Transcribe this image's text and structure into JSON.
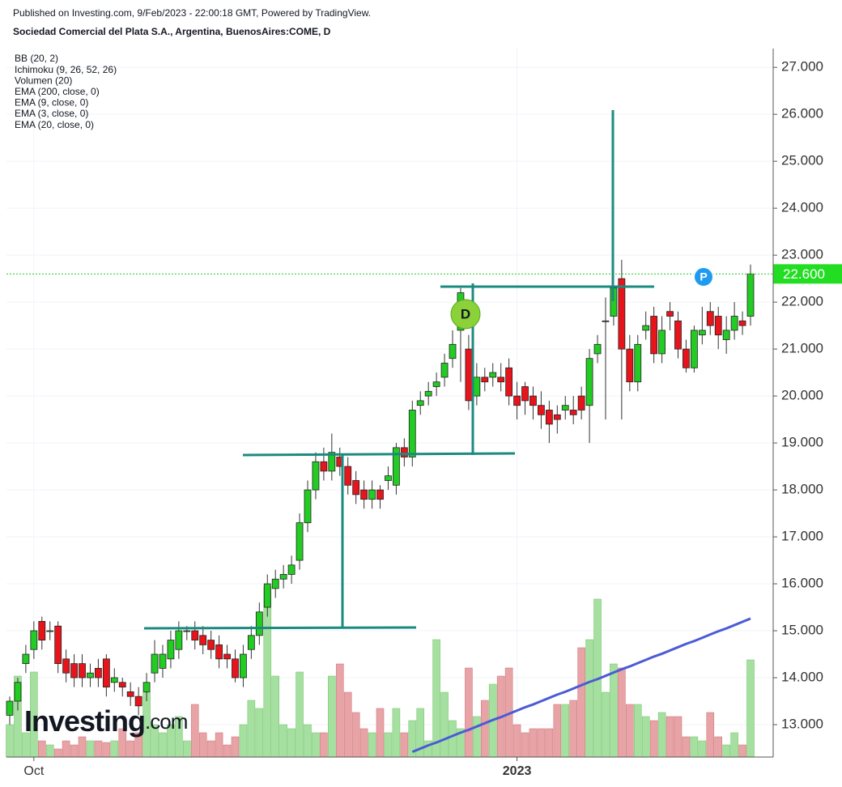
{
  "header": {
    "published": "Published on Investing.com, 9/Feb/2023 - 22:00:18 GMT, Powered by TradingView.",
    "symbol": "Sociedad Comercial del Plata S.A., Argentina, BuenosAires:COME, D"
  },
  "indicators": [
    "BB (20, 2)",
    "Ichimoku (9, 26, 52, 26)",
    "Volumen (20)",
    "EMA (200, close, 0)",
    "EMA (9, close, 0)",
    "EMA (3, close, 0)",
    "EMA (20, close, 0)"
  ],
  "markers": [
    "D",
    "P"
  ],
  "watermark": {
    "main": "Investing",
    "suffix": ".com"
  },
  "chart_data": {
    "type": "candlestick",
    "categories": [
      null,
      null,
      null,
      "Oct",
      null,
      null,
      null,
      null,
      null,
      null,
      null,
      null,
      null,
      null,
      null,
      null,
      null,
      null,
      null,
      null,
      null,
      null,
      null,
      null,
      null,
      null,
      null,
      null,
      null,
      null,
      null,
      null,
      null,
      null,
      null,
      null,
      null,
      null,
      null,
      null,
      null,
      null,
      null,
      null,
      null,
      null,
      null,
      null,
      null,
      null,
      null,
      null,
      null,
      null,
      null,
      null,
      null,
      null,
      null,
      null,
      null,
      null,
      null,
      "2023",
      null,
      null,
      null,
      null,
      null,
      null,
      null,
      null,
      null,
      null,
      null,
      null,
      null,
      null,
      null,
      null,
      null,
      null,
      null,
      null,
      null,
      null,
      null,
      null,
      null,
      null,
      null,
      null,
      null
    ],
    "open": [
      13.2,
      13.5,
      14.3,
      14.6,
      15.2,
      15.0,
      15.1,
      14.4,
      14.3,
      14.3,
      14.0,
      14.2,
      14.4,
      13.9,
      13.9,
      13.7,
      13.6,
      13.7,
      14.1,
      14.2,
      14.4,
      14.6,
      15.0,
      15.0,
      14.9,
      14.8,
      14.7,
      14.5,
      14.4,
      14.0,
      14.6,
      14.9,
      15.5,
      15.9,
      16.1,
      16.2,
      16.5,
      17.3,
      18.0,
      18.6,
      18.4,
      18.7,
      18.5,
      18.2,
      18.0,
      17.8,
      18.0,
      18.2,
      18.1,
      18.9,
      18.7,
      19.8,
      20.0,
      20.2,
      20.4,
      20.8,
      21.4,
      21.0,
      20.0,
      20.4,
      20.4,
      20.4,
      20.6,
      20.0,
      20.2,
      20.0,
      19.8,
      19.7,
      19.6,
      19.7,
      19.7,
      20.0,
      19.8,
      20.9,
      21.6,
      21.7,
      22.5,
      21.0,
      20.3,
      21.4,
      21.7,
      20.9,
      21.8,
      21.6,
      21.0,
      20.6,
      21.3,
      21.8,
      21.7,
      21.2,
      21.4,
      21.6,
      21.7
    ],
    "high": [
      13.6,
      14.0,
      14.7,
      15.2,
      15.3,
      15.2,
      15.2,
      14.6,
      14.5,
      14.5,
      14.3,
      14.4,
      14.5,
      14.2,
      14.0,
      13.9,
      13.8,
      14.1,
      14.8,
      14.7,
      15.0,
      15.2,
      15.1,
      15.2,
      15.1,
      15.0,
      14.9,
      14.7,
      14.6,
      14.7,
      15.1,
      15.6,
      16.2,
      16.3,
      16.4,
      16.6,
      17.5,
      18.2,
      18.8,
      18.9,
      19.2,
      18.9,
      18.7,
      18.4,
      18.2,
      18.2,
      18.1,
      18.5,
      19.0,
      19.1,
      19.9,
      20.1,
      20.3,
      20.5,
      20.9,
      21.4,
      22.3,
      21.3,
      20.7,
      20.6,
      20.7,
      20.7,
      20.8,
      20.3,
      20.3,
      20.2,
      20.1,
      19.9,
      19.8,
      20.0,
      20.0,
      20.2,
      21.0,
      21.3,
      22.1,
      26.05,
      22.9,
      21.3,
      21.3,
      21.8,
      21.9,
      21.7,
      22.0,
      21.8,
      21.2,
      21.5,
      21.9,
      22.0,
      21.9,
      21.7,
      22.0,
      21.8,
      22.8
    ],
    "low": [
      13.0,
      13.3,
      14.1,
      14.4,
      14.6,
      14.8,
      14.1,
      13.9,
      13.8,
      13.8,
      13.8,
      13.8,
      13.6,
      13.7,
      13.6,
      13.4,
      13.2,
      13.5,
      13.9,
      14.0,
      14.2,
      14.4,
      14.8,
      14.6,
      14.5,
      14.4,
      14.2,
      14.2,
      13.9,
      13.8,
      14.4,
      14.7,
      15.3,
      15.7,
      15.9,
      16.0,
      16.3,
      17.1,
      17.8,
      18.2,
      18.2,
      18.3,
      17.9,
      17.7,
      17.6,
      17.6,
      17.6,
      18.0,
      17.9,
      18.5,
      18.5,
      19.6,
      19.8,
      20.0,
      20.2,
      20.6,
      20.3,
      19.7,
      19.8,
      20.1,
      20.2,
      20.1,
      19.8,
      19.5,
      19.6,
      19.5,
      19.3,
      19.0,
      19.2,
      19.5,
      19.4,
      19.5,
      19.0,
      20.7,
      19.5,
      21.5,
      19.5,
      20.1,
      20.1,
      21.2,
      20.7,
      20.7,
      21.4,
      20.8,
      20.5,
      20.5,
      21.1,
      21.3,
      21.0,
      20.9,
      21.2,
      21.3,
      21.5
    ],
    "close": [
      13.5,
      13.9,
      14.5,
      15.0,
      14.8,
      15.0,
      14.3,
      14.1,
      14.0,
      14.0,
      14.1,
      14.0,
      13.8,
      14.0,
      13.8,
      13.6,
      13.4,
      13.9,
      14.5,
      14.5,
      14.8,
      15.0,
      15.0,
      14.8,
      14.7,
      14.6,
      14.4,
      14.4,
      14.0,
      14.5,
      14.9,
      15.4,
      16.0,
      16.1,
      16.2,
      16.4,
      17.3,
      18.0,
      18.6,
      18.4,
      18.8,
      18.5,
      18.1,
      17.9,
      17.8,
      18.0,
      17.8,
      18.3,
      18.9,
      18.7,
      19.7,
      19.9,
      20.1,
      20.3,
      20.7,
      21.1,
      22.2,
      19.9,
      20.4,
      20.3,
      20.5,
      20.3,
      20.0,
      19.8,
      19.9,
      19.8,
      19.6,
      19.4,
      19.5,
      19.8,
      19.6,
      19.7,
      20.8,
      21.1,
      21.6,
      22.3,
      21.0,
      20.3,
      21.1,
      21.5,
      20.9,
      21.4,
      21.7,
      21.0,
      20.6,
      21.4,
      21.4,
      21.5,
      21.3,
      21.4,
      21.7,
      21.5,
      22.6
    ],
    "volume": [
      40,
      100,
      30,
      105,
      20,
      15,
      10,
      20,
      15,
      25,
      20,
      20,
      18,
      20,
      35,
      20,
      30,
      80,
      40,
      30,
      40,
      50,
      20,
      65,
      30,
      20,
      30,
      15,
      25,
      40,
      70,
      60,
      210,
      100,
      40,
      35,
      105,
      40,
      30,
      30,
      100,
      115,
      80,
      55,
      35,
      30,
      60,
      30,
      60,
      30,
      45,
      60,
      20,
      145,
      80,
      45,
      35,
      110,
      50,
      70,
      90,
      100,
      110,
      40,
      30,
      35,
      35,
      35,
      65,
      65,
      70,
      135,
      145,
      195,
      80,
      115,
      110,
      65,
      65,
      50,
      45,
      55,
      50,
      50,
      25,
      25,
      20,
      55,
      25,
      15,
      30,
      15,
      120
    ],
    "ema200": [
      null,
      null,
      null,
      null,
      null,
      null,
      null,
      null,
      null,
      null,
      null,
      null,
      null,
      null,
      null,
      null,
      null,
      null,
      null,
      null,
      null,
      null,
      null,
      null,
      null,
      null,
      null,
      null,
      null,
      null,
      null,
      null,
      null,
      null,
      null,
      null,
      null,
      null,
      null,
      null,
      null,
      null,
      null,
      null,
      null,
      null,
      null,
      null,
      null,
      null,
      12.42,
      12.49,
      12.56,
      12.62,
      12.69,
      12.76,
      12.83,
      12.89,
      12.96,
      13.03,
      13.1,
      13.16,
      13.23,
      13.3,
      13.37,
      13.43,
      13.5,
      13.57,
      13.64,
      13.7,
      13.77,
      13.84,
      13.91,
      13.97,
      14.04,
      14.11,
      14.18,
      14.24,
      14.31,
      14.38,
      14.45,
      14.51,
      14.58,
      14.65,
      14.72,
      14.78,
      14.85,
      14.92,
      14.99,
      15.05,
      15.12,
      15.19,
      15.26
    ],
    "up_color": "#22cc22",
    "down_color": "#e8141b",
    "ema_color": "#4b5bd6",
    "ylim": [
      12.31,
      27.4
    ],
    "yticks": [
      {
        "value": 13,
        "label": "13.000"
      },
      {
        "value": 14,
        "label": "14.000"
      },
      {
        "value": 15,
        "label": "15.000"
      },
      {
        "value": 16,
        "label": "16.000"
      },
      {
        "value": 17,
        "label": "17.000"
      },
      {
        "value": 18,
        "label": "18.000"
      },
      {
        "value": 19,
        "label": "19.000"
      },
      {
        "value": 20,
        "label": "20.000"
      },
      {
        "value": 21,
        "label": "21.000"
      },
      {
        "value": 22,
        "label": "22.000"
      },
      {
        "value": 23,
        "label": "23.000"
      },
      {
        "value": 24,
        "label": "24.000"
      },
      {
        "value": 25,
        "label": "25.000"
      },
      {
        "value": 26,
        "label": "26.000"
      },
      {
        "value": 27,
        "label": "27.000"
      }
    ],
    "last_price": {
      "value": 22.6,
      "label": "22.600"
    },
    "grid": true
  }
}
